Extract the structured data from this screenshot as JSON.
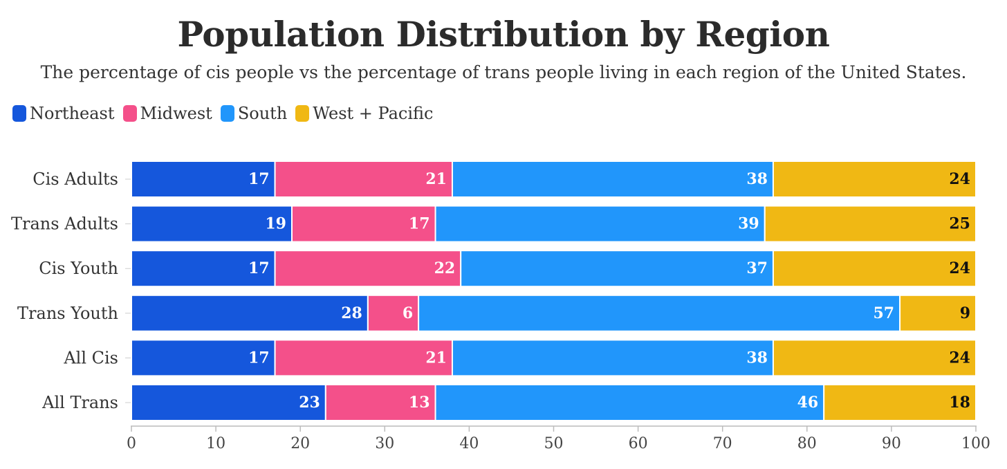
{
  "chart_data": {
    "type": "bar",
    "orientation": "horizontal",
    "stacked": true,
    "title": "Population Distribution by Region",
    "subtitle": "The percentage of cis people vs the percentage of trans people living in each region of the United States.",
    "categories": [
      "Cis Adults",
      "Trans Adults",
      "Cis Youth",
      "Trans Youth",
      "All Cis",
      "All Trans"
    ],
    "series": [
      {
        "name": "Northeast",
        "color": "#1557dc",
        "label_color": "#ffffff",
        "values": [
          17,
          19,
          17,
          28,
          17,
          23
        ]
      },
      {
        "name": "Midwest",
        "color": "#f4508a",
        "label_color": "#ffffff",
        "values": [
          21,
          17,
          22,
          6,
          21,
          13
        ]
      },
      {
        "name": "South",
        "color": "#2196fb",
        "label_color": "#ffffff",
        "values": [
          38,
          39,
          37,
          57,
          38,
          46
        ]
      },
      {
        "name": "West + Pacific",
        "color": "#f0b814",
        "label_color": "#111111",
        "values": [
          24,
          25,
          24,
          9,
          24,
          18
        ]
      }
    ],
    "xlim": [
      0,
      100
    ],
    "xticks": [
      0,
      10,
      20,
      30,
      40,
      50,
      60,
      70,
      80,
      90,
      100
    ],
    "legend_position": "top-left",
    "grid": false
  }
}
